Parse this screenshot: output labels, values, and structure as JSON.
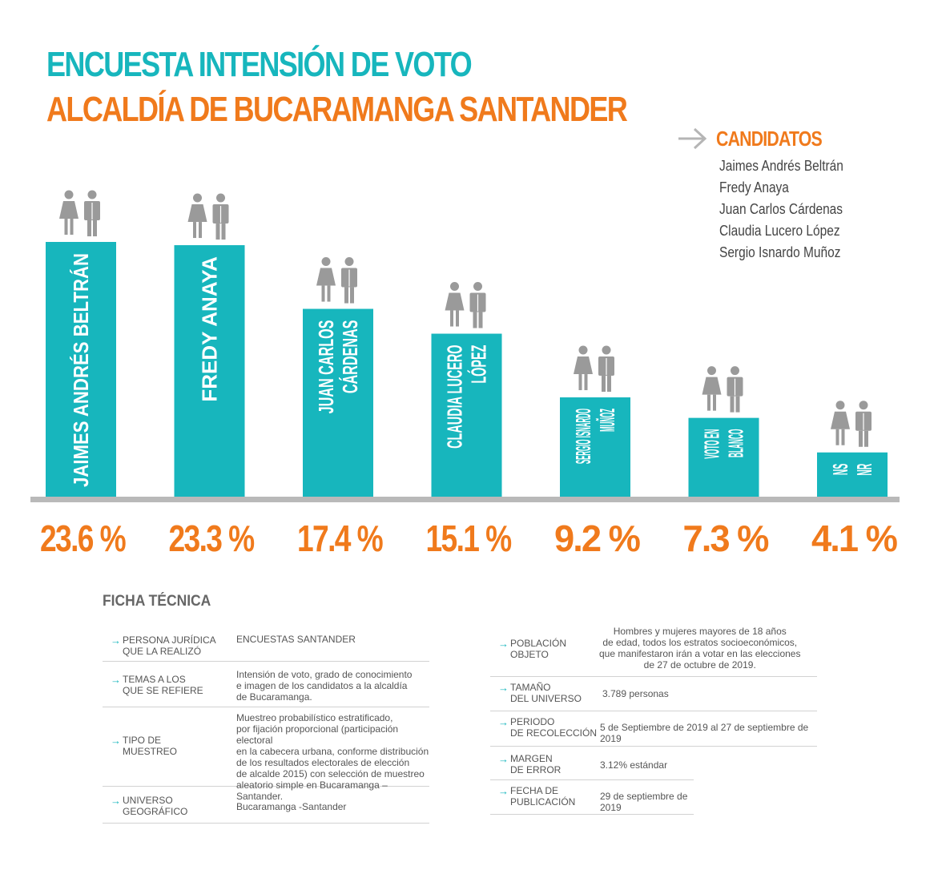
{
  "title": {
    "line1": "ENCUESTA INTENSIÓN DE VOTO",
    "line2": "ALCALDÍA DE BUCARAMANGA SANTANDER"
  },
  "candidates_panel": {
    "heading": "CANDIDATOS",
    "names": [
      "Jaimes Andrés Beltrán",
      "Fredy Anaya",
      "Juan Carlos Cárdenas",
      "Claudia Lucero López",
      "Sergio Isnardo Muñoz"
    ]
  },
  "colors": {
    "teal": "#17b6bd",
    "orange": "#f07a1c",
    "gray": "#9a9a9a",
    "axis": "#b9b9b9"
  },
  "chart_data": {
    "type": "bar",
    "title": "ENCUESTA INTENSIÓN DE VOTO - ALCALDÍA DE BUCARAMANGA SANTANDER",
    "xlabel": "",
    "ylabel": "",
    "categories": [
      [
        "JAIMES ANDRÉS BELTRÁN"
      ],
      [
        "FREDY ANAYA"
      ],
      [
        "JUAN CARLOS",
        "CÁRDENAS"
      ],
      [
        "CLAUDIA LUCERO",
        "LÓPEZ"
      ],
      [
        "SERGIO ISNARDO",
        "MUÑOZ"
      ],
      [
        "VOTO EN",
        "BLANCO"
      ],
      [
        "NS",
        "NR"
      ]
    ],
    "values": [
      23.6,
      23.3,
      17.4,
      15.1,
      9.2,
      7.3,
      4.1
    ],
    "value_labels": [
      "23.6 %",
      "23.3 %",
      "17.4 %",
      "15.1 %",
      "9.2 %",
      "7.3 %",
      "4.1 %"
    ],
    "ylim": [
      0,
      23.6
    ],
    "grid": false,
    "icon": "man-woman-icon"
  },
  "ficha": {
    "title": "FICHA TÉCNICA",
    "left": [
      {
        "label": [
          "PERSONA JURÍDICA",
          "QUE LA REALIZÓ"
        ],
        "value": "ENCUESTAS SANTANDER"
      },
      {
        "label": [
          "TEMAS A LOS",
          "QUE SE REFIERE"
        ],
        "value": "Intensión de voto, grado de conocimiento\ne imagen de los candidatos a la alcaldía\nde Bucaramanga."
      },
      {
        "label": [
          "TIPO DE",
          "MUESTREO"
        ],
        "value": "Muestreo probabilístico estratificado,\npor fijación proporcional (participación electoral\nen la cabecera urbana, conforme distribución\nde los resultados electorales de elección\nde alcalde 2015) con selección de muestreo\naleatorio simple en Bucaramanga – Santander."
      },
      {
        "label": [
          "UNIVERSO",
          "GEOGRÁFICO"
        ],
        "value": "Bucaramanga -Santander"
      }
    ],
    "right": [
      {
        "label": [
          "POBLACIÓN",
          "OBJETO"
        ],
        "value": "Hombres y mujeres mayores de 18 años\nde edad, todos los estratos socioeconómicos,\nque manifestaron irán  a votar en las elecciones\nde 27 de octubre de 2019."
      },
      {
        "label": [
          "TAMAÑO",
          "DEL UNIVERSO"
        ],
        "value": "3.789 personas"
      },
      {
        "label": [
          "PERIODO",
          "DE RECOLECCIÓN"
        ],
        "value": "5 de Septiembre de 2019 al 27 de septiembre de 2019"
      },
      {
        "label": [
          "MARGEN",
          "DE ERROR"
        ],
        "value": "3.12% estándar"
      },
      {
        "label": [
          "FECHA DE",
          "PUBLICACIÓN"
        ],
        "value": "29 de septiembre de 2019"
      }
    ]
  }
}
